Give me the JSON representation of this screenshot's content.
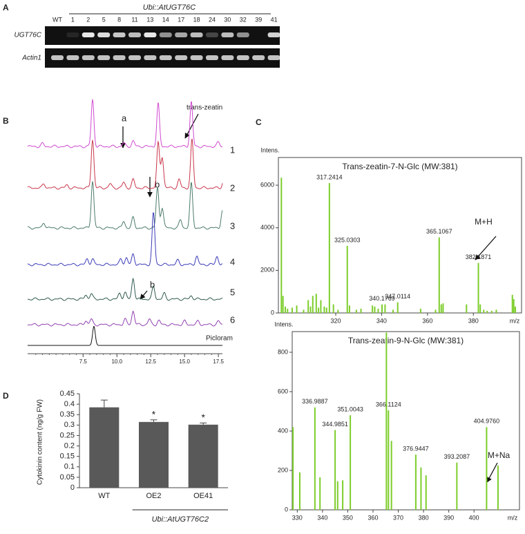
{
  "panel_a": {
    "label": "A",
    "title": "Ubi::AtUGT76C",
    "lanes": [
      "WT",
      "1",
      "2",
      "5",
      "8",
      "11",
      "13",
      "14",
      "17",
      "18",
      "24",
      "30",
      "32",
      "39",
      "41"
    ],
    "rows": [
      "UGT76C",
      "Actin1"
    ]
  },
  "panel_b": {
    "label": "B",
    "xlim": [
      3.4,
      17.8
    ],
    "xticks": [
      {
        "value": 7.5,
        "label": "7.5"
      },
      {
        "value": 10,
        "label": "10.0"
      },
      {
        "value": 12.5,
        "label": "12.5"
      },
      {
        "value": 15,
        "label": "15.0"
      },
      {
        "value": 17.5,
        "label": "17.5"
      }
    ],
    "traces": [
      "1",
      "2",
      "3",
      "4",
      "5",
      "6",
      "Picloram"
    ],
    "annotations": [
      "trans-zeatin",
      "a",
      "b",
      "b"
    ]
  },
  "panel_c": {
    "label": "C"
  },
  "panel_d": {
    "label": "D"
  },
  "chart_data": [
    {
      "type": "stem",
      "title": "Trans-zeatin-7-N-Glc (MW:381)",
      "y_label": "Intens.",
      "x_label": "m/z",
      "color": "#7ccd2a",
      "xlim": [
        295,
        401
      ],
      "xticks": [
        320,
        340,
        360,
        380
      ],
      "ylim": [
        0,
        7300
      ],
      "yticks": [
        0,
        2000,
        4000,
        6000
      ],
      "labeled": {
        "x": [
          317.2414,
          325.0303,
          340.1769,
          347.0114,
          365.1067,
          382.1871
        ],
        "x_labels": [
          "317.2414",
          "325.0303",
          "340.1769",
          "347.0114",
          "365.1067",
          "382.1871"
        ],
        "values": [
          6100,
          3150,
          400,
          500,
          3550,
          2350
        ]
      },
      "other": {
        "x": [
          296.3,
          297,
          298,
          299,
          301,
          303,
          306,
          308,
          309,
          310,
          311.5,
          312.5,
          313.5,
          315,
          316,
          319,
          321,
          326,
          329,
          331,
          336,
          337,
          338.5,
          341.5,
          345,
          357,
          363.5,
          366,
          366.8,
          377,
          383,
          384.5,
          386,
          388,
          390,
          397,
          397.6,
          398.3
        ],
        "values": [
          6350,
          800,
          300,
          200,
          250,
          350,
          150,
          600,
          300,
          800,
          900,
          250,
          600,
          300,
          250,
          400,
          150,
          350,
          150,
          200,
          350,
          300,
          200,
          400,
          150,
          200,
          150,
          400,
          450,
          400,
          400,
          150,
          100,
          100,
          150,
          850,
          650,
          300
        ]
      },
      "annotation": "M+H"
    },
    {
      "type": "stem",
      "title": "Trans-zeatin-9-N-Glc (MW:381)",
      "y_label": "Intens.",
      "x_label": "m/z",
      "color": "#7ccd2a",
      "xlim": [
        328,
        418
      ],
      "xticks": [
        330,
        340,
        350,
        360,
        370,
        380,
        390,
        400
      ],
      "ylim": [
        0,
        905
      ],
      "yticks": [
        0,
        200,
        400,
        600,
        800
      ],
      "labeled": {
        "x": [
          336.9887,
          344.9851,
          351.0043,
          366.1124,
          376.9447,
          393.2087,
          404.976
        ],
        "x_labels": [
          "336.9887",
          "344.9851",
          "351.0043",
          "366.1124",
          "376.9447",
          "393.2087",
          "404.9760"
        ],
        "values": [
          520,
          405,
          480,
          505,
          280,
          240,
          420
        ]
      },
      "other": {
        "x": [
          328.3,
          331,
          339,
          346,
          348,
          365.3,
          367.3,
          379,
          381,
          409.5
        ],
        "values": [
          420,
          190,
          165,
          145,
          150,
          900,
          350,
          215,
          175,
          225
        ]
      },
      "annotation": "M+Na"
    },
    {
      "type": "bar",
      "y_label": "Cytokinin content (ng/g FW)",
      "color": "#595959",
      "categories": [
        "WT",
        "OE2",
        "OE41"
      ],
      "values": [
        0.385,
        0.315,
        0.302
      ],
      "errors": [
        0.035,
        0.01,
        0.008
      ],
      "markers": [
        null,
        "*",
        "*"
      ],
      "group_label": "Ubi::AtUGT76C2",
      "ylim": [
        0,
        0.45
      ],
      "yticks": [
        0,
        0.05,
        0.1,
        0.15,
        0.2,
        0.25,
        0.3,
        0.35,
        0.4,
        0.45
      ]
    }
  ]
}
